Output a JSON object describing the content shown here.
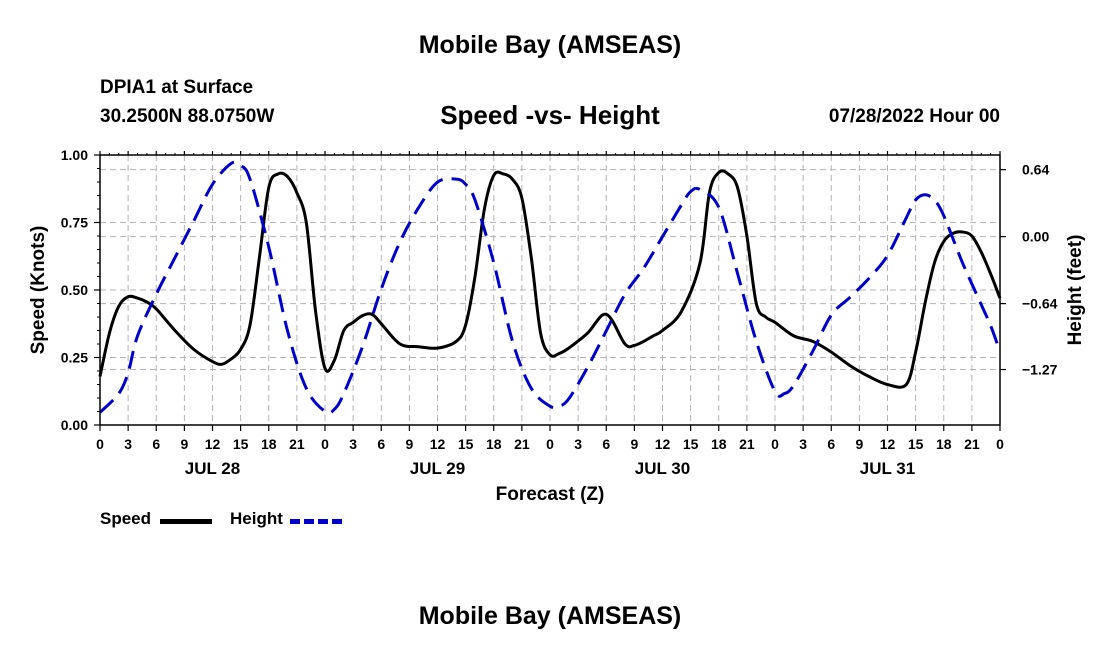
{
  "page": {
    "title": "Mobile Bay (AMSEAS)",
    "station": "DPIA1 at Surface",
    "coords": "30.2500N  88.0750W",
    "subtitle": "Speed -vs- Height",
    "run_time": "07/28/2022 Hour 00",
    "footer_title": "Mobile Bay (AMSEAS)"
  },
  "colors": {
    "speed": "#000000",
    "height": "#0000cc",
    "grid": "#b4b4b4"
  },
  "chart_data": {
    "type": "line",
    "title": "Speed -vs- Height",
    "xlabel": "Forecast (Z)",
    "ylabel": "Speed (Knots)",
    "y2label": "Height (feet)",
    "xlim": [
      0,
      96
    ],
    "ylim": [
      0,
      1
    ],
    "y2lim": [
      -1.8,
      0.78
    ],
    "x_ticks": [
      0,
      3,
      6,
      9,
      12,
      15,
      18,
      21,
      24,
      27,
      30,
      33,
      36,
      39,
      42,
      45,
      48,
      51,
      54,
      57,
      60,
      63,
      66,
      69,
      72,
      75,
      78,
      81,
      84,
      87,
      90,
      93,
      96
    ],
    "x_tick_labels": [
      "0",
      "3",
      "6",
      "9",
      "12",
      "15",
      "18",
      "21",
      "0",
      "3",
      "6",
      "9",
      "12",
      "15",
      "18",
      "21",
      "0",
      "3",
      "6",
      "9",
      "12",
      "15",
      "18",
      "21",
      "0",
      "3",
      "6",
      "9",
      "12",
      "15",
      "18",
      "21",
      "0"
    ],
    "y_ticks": [
      0,
      0.25,
      0.5,
      0.75,
      1.0
    ],
    "y_tick_labels": [
      "0.00",
      "0.25",
      "0.50",
      "0.75",
      "1.00"
    ],
    "y2_ticks": [
      -1.27,
      -0.64,
      0.0,
      0.64
    ],
    "y2_tick_labels": [
      "−1.27",
      "−0.64",
      "0.00",
      "0.64"
    ],
    "day_labels": [
      {
        "x": 12,
        "label": "JUL 28"
      },
      {
        "x": 36,
        "label": "JUL 29"
      },
      {
        "x": 60,
        "label": "JUL 30"
      },
      {
        "x": 84,
        "label": "JUL 31"
      }
    ],
    "grid": true,
    "legend": {
      "position": "bottom-left",
      "entries": [
        {
          "name": "Speed",
          "series": "speed"
        },
        {
          "name": "Height",
          "series": "height"
        }
      ]
    },
    "series": [
      {
        "name": "Speed",
        "axis": "left",
        "style": "solid",
        "x": [
          0,
          1,
          2,
          3,
          4,
          5,
          6,
          8,
          10,
          12,
          13,
          14,
          15,
          16,
          17,
          18,
          19,
          20,
          21,
          22,
          23,
          24,
          25,
          26,
          27,
          28,
          29,
          30,
          32,
          34,
          36,
          38,
          39,
          40,
          41,
          42,
          43,
          44,
          45,
          46,
          47,
          48,
          49,
          50,
          52,
          54,
          56,
          57,
          58,
          59,
          60,
          62,
          64,
          65,
          66,
          67,
          68,
          69,
          70,
          71,
          72,
          74,
          76,
          78,
          80,
          82,
          84,
          86,
          87,
          88,
          89,
          90,
          91,
          92,
          93,
          94,
          95,
          96
        ],
        "values": [
          0.18,
          0.34,
          0.44,
          0.475,
          0.47,
          0.455,
          0.43,
          0.35,
          0.28,
          0.235,
          0.225,
          0.245,
          0.28,
          0.37,
          0.62,
          0.88,
          0.93,
          0.92,
          0.86,
          0.75,
          0.42,
          0.21,
          0.24,
          0.35,
          0.38,
          0.405,
          0.41,
          0.375,
          0.3,
          0.29,
          0.285,
          0.31,
          0.37,
          0.55,
          0.8,
          0.925,
          0.93,
          0.91,
          0.84,
          0.62,
          0.34,
          0.26,
          0.265,
          0.285,
          0.34,
          0.41,
          0.3,
          0.295,
          0.31,
          0.33,
          0.35,
          0.42,
          0.6,
          0.86,
          0.935,
          0.93,
          0.88,
          0.7,
          0.45,
          0.4,
          0.38,
          0.33,
          0.31,
          0.27,
          0.22,
          0.18,
          0.15,
          0.15,
          0.27,
          0.45,
          0.6,
          0.68,
          0.71,
          0.715,
          0.7,
          0.64,
          0.56,
          0.47
        ]
      },
      {
        "name": "Height",
        "axis": "right",
        "style": "dashed",
        "x": [
          0,
          2,
          3,
          4,
          6,
          8,
          10,
          12,
          14,
          15,
          16,
          18,
          20,
          22,
          24,
          25,
          26,
          28,
          30,
          32,
          34,
          36,
          38,
          39,
          40,
          42,
          44,
          46,
          48,
          49,
          50,
          52,
          54,
          56,
          58,
          60,
          62,
          63,
          64,
          66,
          68,
          70,
          72,
          73,
          74,
          76,
          78,
          80,
          82,
          84,
          86,
          87,
          88,
          89,
          90,
          92,
          94,
          95,
          96
        ],
        "values": [
          -1.68,
          -1.5,
          -1.3,
          -0.95,
          -0.55,
          -0.2,
          0.15,
          0.5,
          0.7,
          0.68,
          0.55,
          -0.1,
          -0.9,
          -1.45,
          -1.67,
          -1.65,
          -1.5,
          -1.05,
          -0.5,
          -0.05,
          0.28,
          0.52,
          0.55,
          0.5,
          0.35,
          -0.25,
          -1.0,
          -1.45,
          -1.62,
          -1.62,
          -1.55,
          -1.25,
          -0.9,
          -0.55,
          -0.3,
          0.0,
          0.3,
          0.43,
          0.45,
          0.28,
          -0.35,
          -1.0,
          -1.48,
          -1.5,
          -1.42,
          -1.1,
          -0.75,
          -0.58,
          -0.4,
          -0.18,
          0.18,
          0.35,
          0.4,
          0.35,
          0.2,
          -0.25,
          -0.65,
          -0.85,
          -1.1
        ]
      }
    ]
  }
}
